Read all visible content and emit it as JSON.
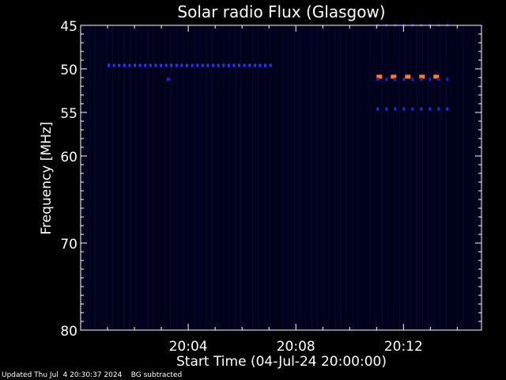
{
  "chart_data": {
    "type": "heatmap",
    "title": "Solar radio Flux (Glasgow)",
    "xlabel": "Start Time (04-Jul-24 20:00:00)",
    "ylabel": "Frequency [MHz]",
    "x_unit": "minutes after 20:00:00",
    "xlim": [
      0,
      14.9
    ],
    "ylim": [
      45,
      80
    ],
    "x_ticks": [
      {
        "value": 4,
        "label": "20:04"
      },
      {
        "value": 8,
        "label": "20:08"
      },
      {
        "value": 12,
        "label": "20:12"
      }
    ],
    "y_ticks": [
      {
        "value": 45,
        "label": "45"
      },
      {
        "value": 50,
        "label": "50"
      },
      {
        "value": 55,
        "label": "55"
      },
      {
        "value": 60,
        "label": "60"
      },
      {
        "value": 70,
        "label": "70"
      },
      {
        "value": 80,
        "label": "80"
      }
    ],
    "features": [
      {
        "name": "band-49.6MHz",
        "freq": 49.6,
        "t_start": 1.0,
        "t_end": 7.1,
        "intensity": "medium",
        "color": "#3030ff"
      },
      {
        "name": "point-51.2MHz",
        "freq": 51.2,
        "t_start": 3.2,
        "t_end": 3.3,
        "intensity": "medium",
        "color": "#2020dd"
      },
      {
        "name": "band-50.9MHz",
        "freq": 50.9,
        "t_start": 11.0,
        "t_end": 13.6,
        "intensity": "high",
        "color": "#ff7a33"
      },
      {
        "name": "band-51.2MHz",
        "freq": 51.2,
        "t_start": 11.0,
        "t_end": 13.6,
        "intensity": "low",
        "color": "#2424cc"
      },
      {
        "name": "band-54.6MHz",
        "freq": 54.6,
        "t_start": 11.0,
        "t_end": 13.6,
        "intensity": "low",
        "color": "#2a2ad0"
      },
      {
        "name": "band-45MHz",
        "freq": 45.0,
        "t_start": 11.0,
        "t_end": 13.6,
        "intensity": "low",
        "color": "#1a1a90"
      }
    ]
  },
  "footer": {
    "updated": "Updated Thu Jul  4 20:30:37 2024",
    "note": "BG subtracted"
  },
  "colors": {
    "background": "#000000",
    "plot_background": "#00001a",
    "axis": "#ffffff"
  }
}
